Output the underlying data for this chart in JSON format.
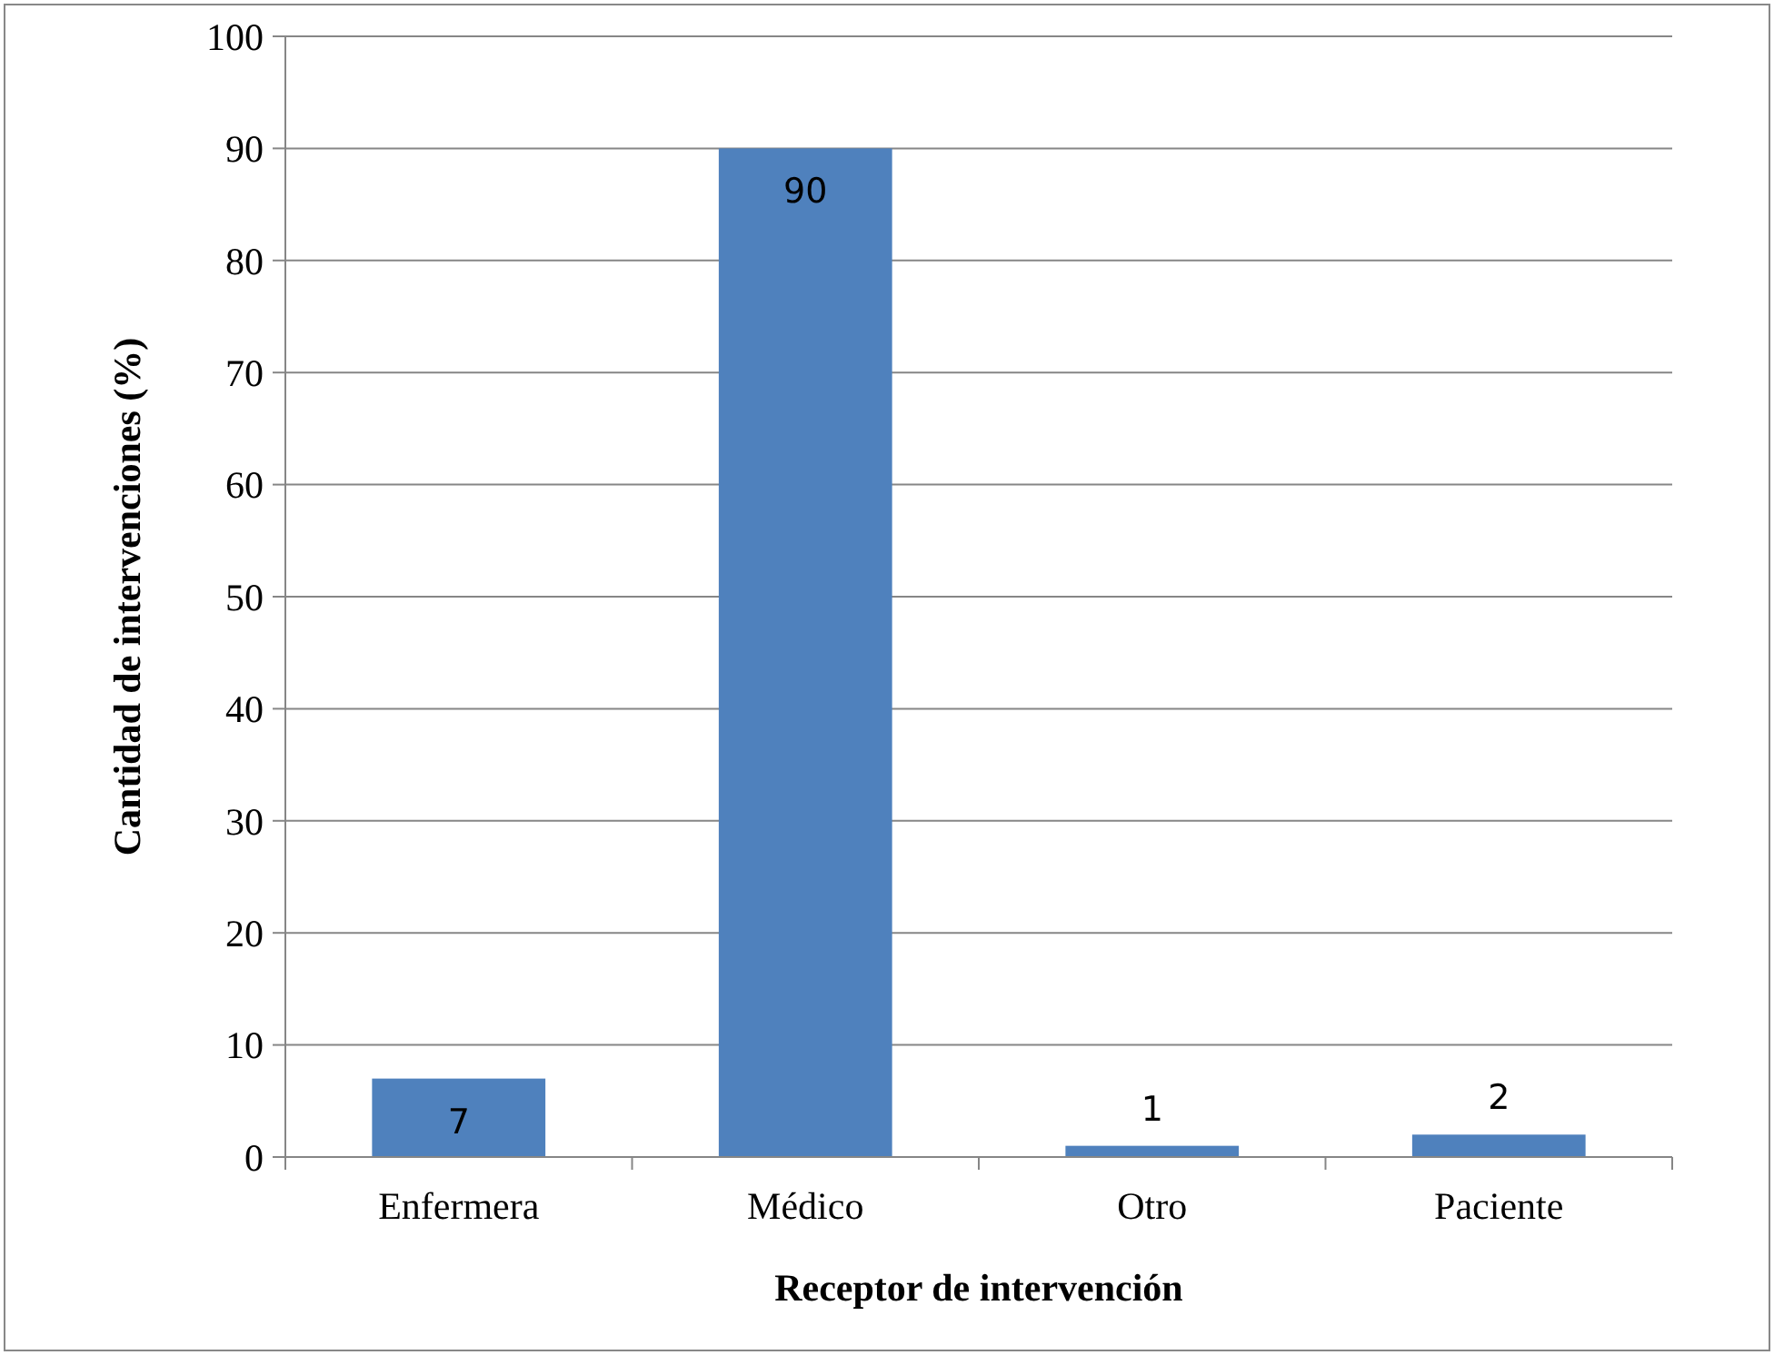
{
  "chart_data": {
    "type": "bar",
    "xlabel": "Receptor de intervención",
    "ylabel": "Cantidad de intervenciones (%)",
    "categories": [
      "Enfermera",
      "Médico",
      "Otro",
      "Paciente"
    ],
    "values": [
      7,
      90,
      1,
      2
    ],
    "color": "#4f81bd",
    "ylim": [
      0,
      100
    ],
    "yticks": [
      0,
      10,
      20,
      30,
      40,
      50,
      60,
      70,
      80,
      90,
      100
    ],
    "grid": "y",
    "data_labels": true
  }
}
